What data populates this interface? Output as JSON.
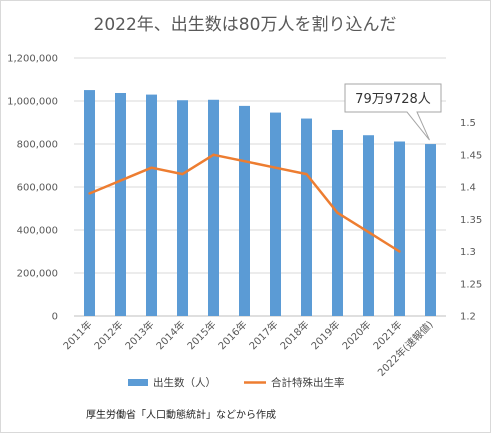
{
  "chart_data": {
    "type": "bar",
    "title": "2022年、出生数は80万人を割り込んだ",
    "categories": [
      "2011年",
      "2012年",
      "2013年",
      "2014年",
      "2015年",
      "2016年",
      "2017年",
      "2018年",
      "2019年",
      "2020年",
      "2021年",
      "2022年(速報値)"
    ],
    "series": [
      {
        "name": "出生数（人）",
        "type": "bar",
        "axis": "left",
        "color": "#5b9bd5",
        "values": [
          1050807,
          1037232,
          1029817,
          1003609,
          1005721,
          977242,
          946146,
          918400,
          865239,
          840835,
          811622,
          799728
        ]
      },
      {
        "name": "合計特殊出生率",
        "type": "line",
        "axis": "right",
        "color": "#ed7d31",
        "values": [
          1.39,
          1.41,
          1.43,
          1.42,
          1.45,
          1.44,
          1.43,
          1.42,
          1.36,
          1.33,
          1.3,
          null
        ]
      }
    ],
    "y_left": {
      "min": 0,
      "max": 1200000,
      "step": 200000
    },
    "y_right": {
      "min": 1.2,
      "max": 1.6,
      "step": 0.05
    },
    "grid": true,
    "legend_position": "bottom",
    "callout": {
      "text": "79万9728人",
      "category_index": 11
    },
    "source": "厚生労働省「人口動態統計」などから作成"
  }
}
